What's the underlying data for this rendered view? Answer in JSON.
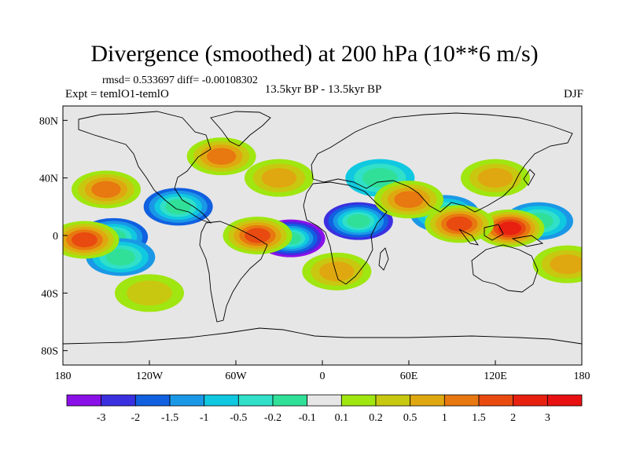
{
  "header": {
    "title": "Divergence (smoothed) at 200 hPa (10**6 m/s)",
    "stats": "rmsd= 0.533697 diff= -0.00108302",
    "expt": "Expt = temlO1-temlO",
    "center_label": "13.5kyr BP - 13.5kyr BP",
    "season": "DJF"
  },
  "chart_data": {
    "type": "heatmap",
    "title": "Divergence (smoothed) at 200 hPa (10**6 m/s)",
    "xlabel": "",
    "ylabel": "",
    "xlim": [
      -180,
      180
    ],
    "ylim": [
      -90,
      90
    ],
    "x_ticks": [
      {
        "value": -180,
        "label": "180"
      },
      {
        "value": -120,
        "label": "120W"
      },
      {
        "value": -60,
        "label": "60W"
      },
      {
        "value": 0,
        "label": "0"
      },
      {
        "value": 60,
        "label": "60E"
      },
      {
        "value": 120,
        "label": "120E"
      },
      {
        "value": 180,
        "label": "180"
      }
    ],
    "y_ticks": [
      {
        "value": 80,
        "label": "80N"
      },
      {
        "value": 40,
        "label": "40N"
      },
      {
        "value": 0,
        "label": "0"
      },
      {
        "value": -40,
        "label": "40S"
      },
      {
        "value": -80,
        "label": "80S"
      }
    ],
    "colorbar": {
      "labels": [
        "-3",
        "-2",
        "-1.5",
        "-1",
        "-0.5",
        "-0.2",
        "-0.1",
        "0.1",
        "0.2",
        "0.5",
        "1",
        "1.5",
        "2",
        "3"
      ],
      "colors": [
        "#8a10e8",
        "#3a30e0",
        "#1060e0",
        "#1a98e6",
        "#10c8e0",
        "#30e0c8",
        "#30e098",
        "#e6e6e6",
        "#a0e610",
        "#c8c810",
        "#e0a810",
        "#e87810",
        "#e84a10",
        "#e82010",
        "#e81010"
      ]
    },
    "features": [
      {
        "lon": -22,
        "lat": -2,
        "value": -3
      },
      {
        "lon": 25,
        "lat": 10,
        "value": -2
      },
      {
        "lon": -145,
        "lat": -1,
        "value": -1.5
      },
      {
        "lon": -100,
        "lat": 20,
        "value": -1.5
      },
      {
        "lon": 85,
        "lat": 15,
        "value": -1
      },
      {
        "lon": 150,
        "lat": 10,
        "value": -1
      },
      {
        "lon": 40,
        "lat": 40,
        "value": -0.5
      },
      {
        "lon": -140,
        "lat": -15,
        "value": -1
      },
      {
        "lon": 130,
        "lat": 5,
        "value": 2
      },
      {
        "lon": 95,
        "lat": 8,
        "value": 1.5
      },
      {
        "lon": -165,
        "lat": -3,
        "value": 1.5
      },
      {
        "lon": -45,
        "lat": 0,
        "value": 1.5
      },
      {
        "lon": 60,
        "lat": 25,
        "value": 1
      },
      {
        "lon": -150,
        "lat": 32,
        "value": 1
      },
      {
        "lon": 10,
        "lat": -25,
        "value": 0.5
      },
      {
        "lon": -70,
        "lat": 55,
        "value": 1
      },
      {
        "lon": 170,
        "lat": -20,
        "value": 0.5
      },
      {
        "lon": -120,
        "lat": -40,
        "value": 0.2
      },
      {
        "lon": 120,
        "lat": 40,
        "value": 0.5
      },
      {
        "lon": -30,
        "lat": 40,
        "value": 0.5
      }
    ]
  }
}
